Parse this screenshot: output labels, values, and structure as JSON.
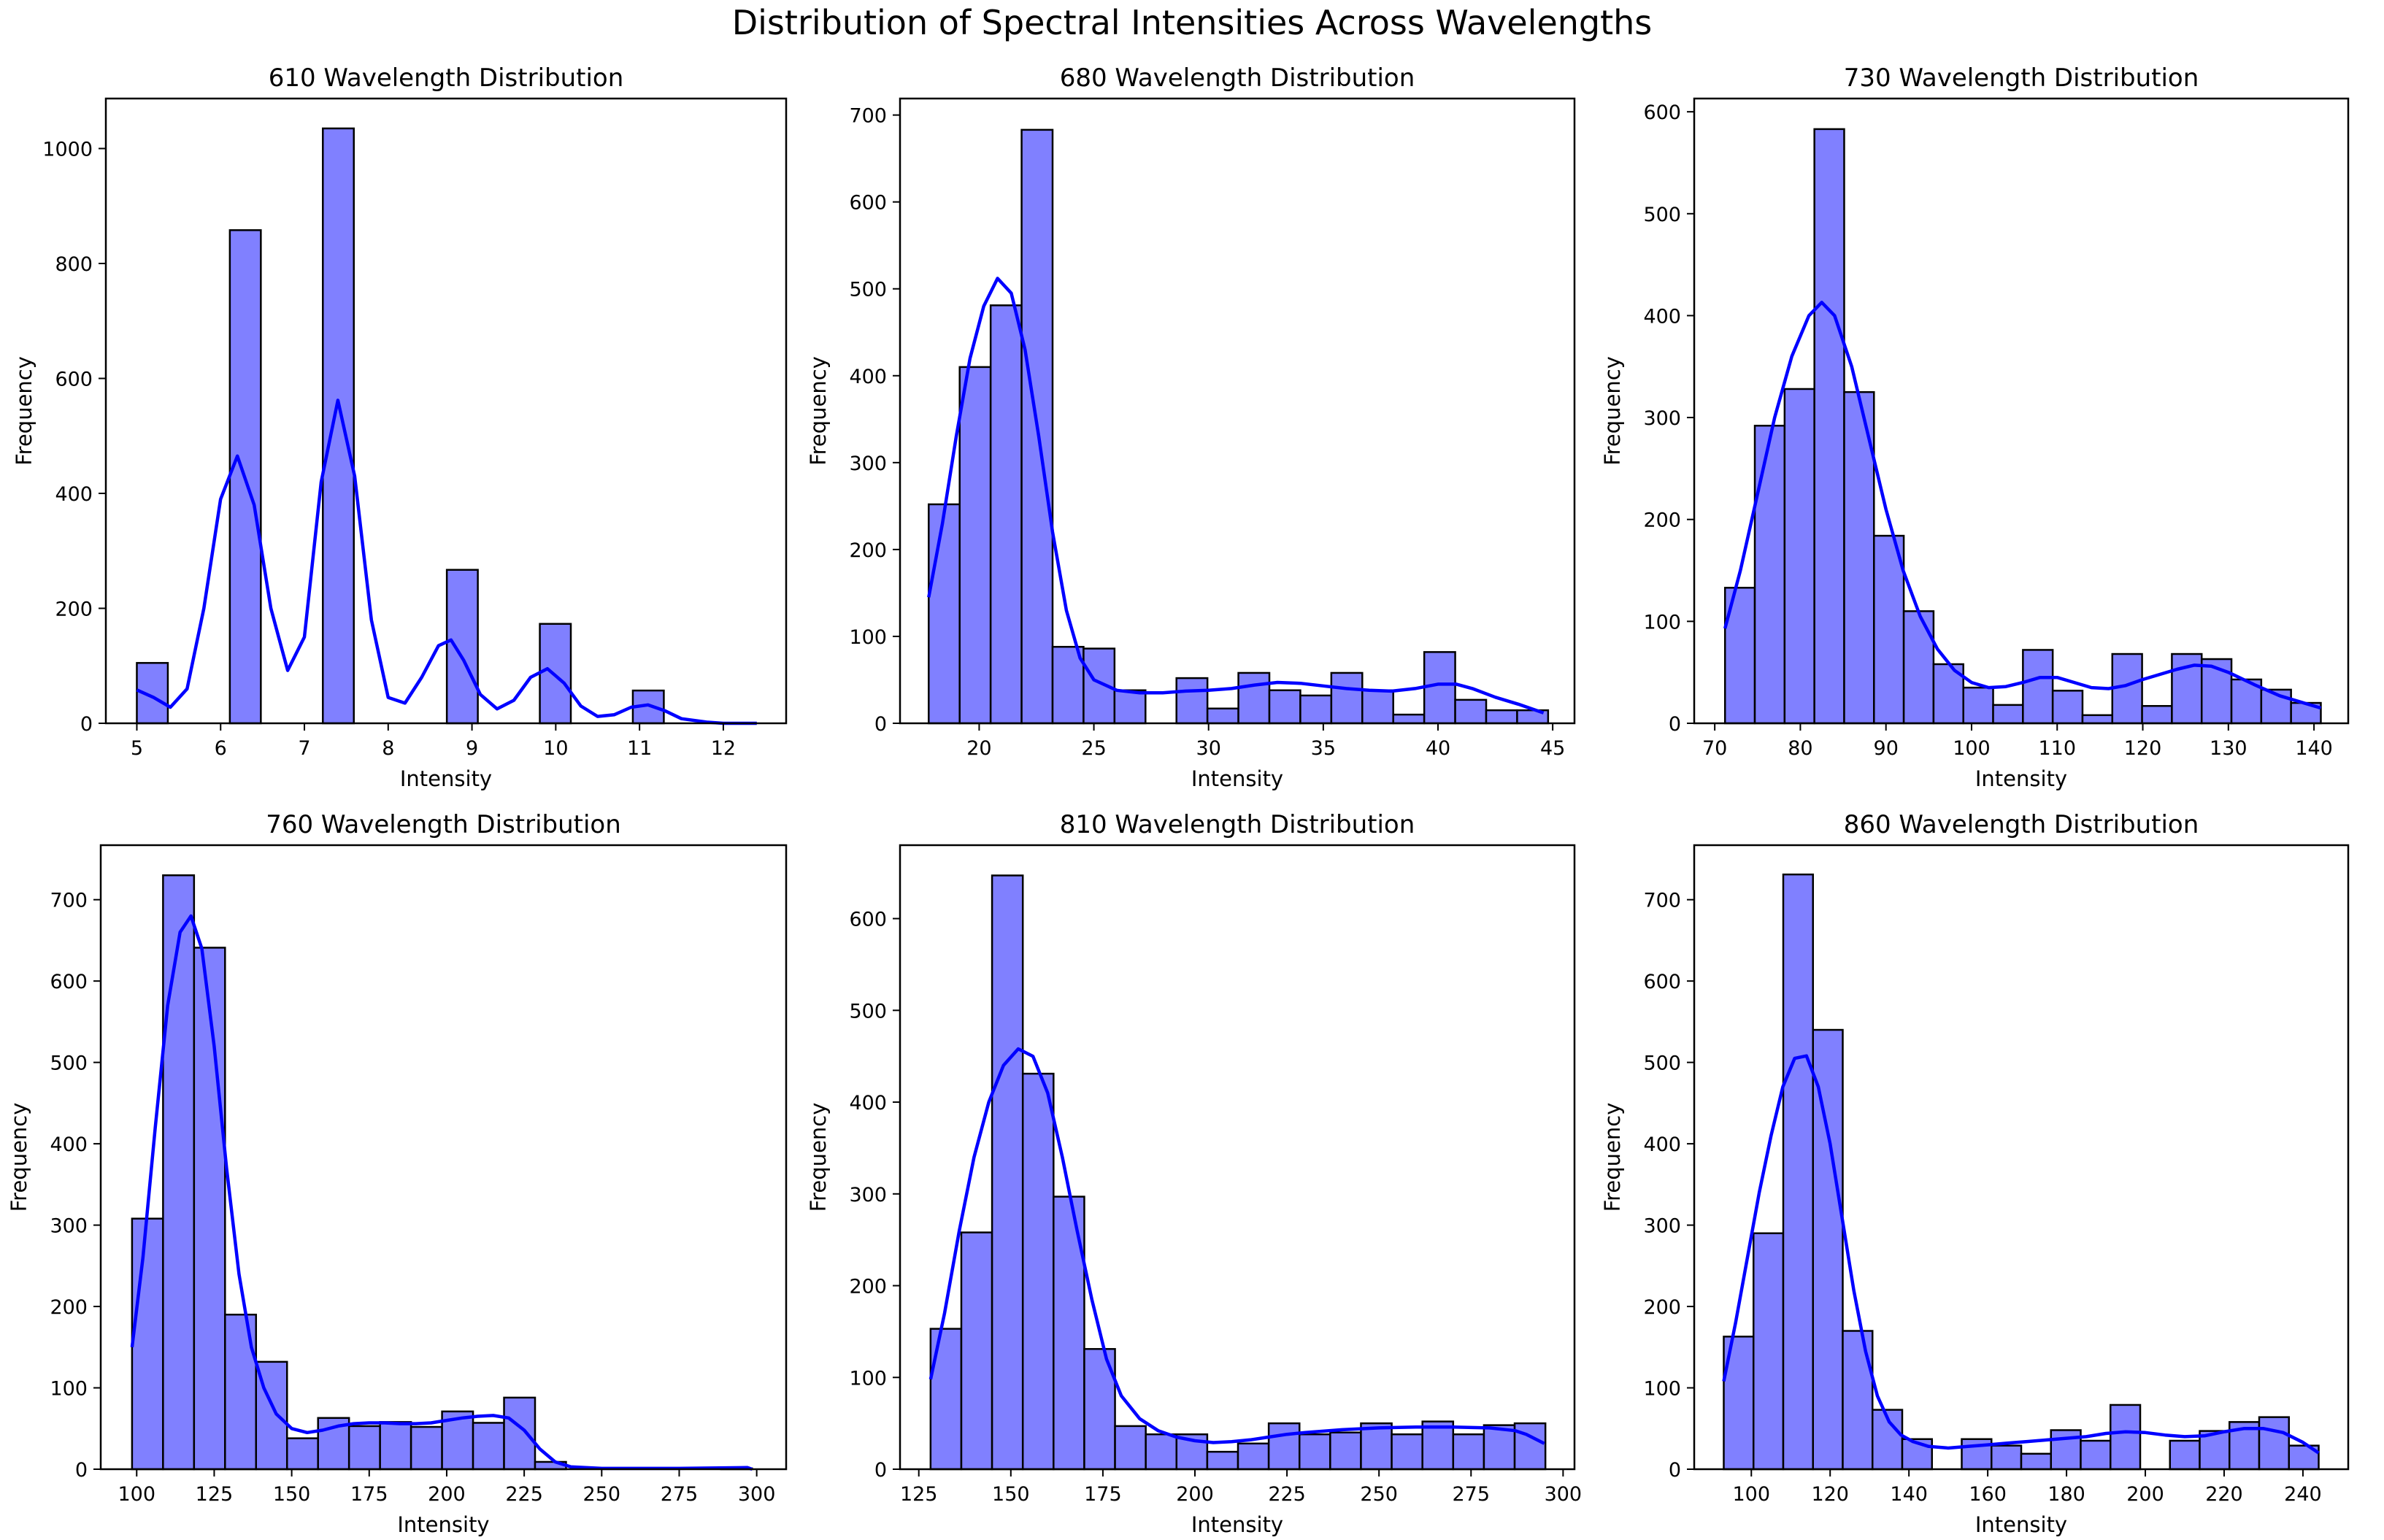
{
  "figure_title": "Distribution of Spectral Intensities Across Wavelengths",
  "colors": {
    "bar_fill": "#8080ff",
    "bar_edge": "#000000",
    "kde": "#0000ff"
  },
  "chart_data": [
    {
      "type": "histogram",
      "title": "610 Wavelength Distribution",
      "xlabel": "Intensity",
      "ylabel": "Frequency",
      "xlim": [
        4.63,
        12.75
      ],
      "ylim": [
        0,
        1087
      ],
      "xticks": [
        5,
        6,
        7,
        8,
        9,
        10,
        11,
        12
      ],
      "yticks": [
        0,
        200,
        400,
        600,
        800,
        1000
      ],
      "bin_start": 5.0,
      "bin_width": 0.37,
      "values": [
        105,
        0,
        0,
        858,
        0,
        0,
        1035,
        0,
        0,
        0,
        267,
        0,
        0,
        173,
        0,
        0,
        57,
        0,
        0,
        0
      ],
      "kde": [
        [
          5.0,
          58
        ],
        [
          5.2,
          45
        ],
        [
          5.4,
          28
        ],
        [
          5.6,
          60
        ],
        [
          5.8,
          200
        ],
        [
          6.0,
          390
        ],
        [
          6.2,
          465
        ],
        [
          6.4,
          380
        ],
        [
          6.6,
          200
        ],
        [
          6.8,
          92
        ],
        [
          7.0,
          150
        ],
        [
          7.2,
          420
        ],
        [
          7.4,
          562
        ],
        [
          7.6,
          430
        ],
        [
          7.8,
          180
        ],
        [
          8.0,
          45
        ],
        [
          8.2,
          35
        ],
        [
          8.4,
          80
        ],
        [
          8.6,
          135
        ],
        [
          8.75,
          145
        ],
        [
          8.9,
          110
        ],
        [
          9.1,
          50
        ],
        [
          9.3,
          25
        ],
        [
          9.5,
          40
        ],
        [
          9.7,
          80
        ],
        [
          9.9,
          95
        ],
        [
          10.1,
          70
        ],
        [
          10.3,
          30
        ],
        [
          10.5,
          12
        ],
        [
          10.7,
          15
        ],
        [
          10.9,
          28
        ],
        [
          11.1,
          32
        ],
        [
          11.3,
          22
        ],
        [
          11.5,
          8
        ],
        [
          11.8,
          2
        ],
        [
          12.0,
          0
        ],
        [
          12.4,
          0
        ]
      ]
    },
    {
      "type": "histogram",
      "title": "680 Wavelength Distribution",
      "xlabel": "Intensity",
      "ylabel": "Frequency",
      "xlim": [
        16.55,
        45.95
      ],
      "ylim": [
        0,
        719
      ],
      "xticks": [
        20,
        25,
        30,
        35,
        40,
        45
      ],
      "yticks": [
        0,
        100,
        200,
        300,
        400,
        500,
        600,
        700
      ],
      "bin_start": 17.8,
      "bin_width": 1.35,
      "values": [
        252,
        410,
        481,
        683,
        88,
        86,
        38,
        0,
        52,
        17,
        58,
        38,
        32,
        58,
        38,
        10,
        82,
        27,
        15,
        15
      ],
      "kde": [
        [
          17.8,
          145
        ],
        [
          18.4,
          230
        ],
        [
          19.0,
          330
        ],
        [
          19.6,
          420
        ],
        [
          20.2,
          480
        ],
        [
          20.8,
          512
        ],
        [
          21.4,
          495
        ],
        [
          22.0,
          430
        ],
        [
          22.6,
          330
        ],
        [
          23.2,
          220
        ],
        [
          23.8,
          130
        ],
        [
          24.4,
          75
        ],
        [
          25.0,
          50
        ],
        [
          26.0,
          38
        ],
        [
          27.0,
          35
        ],
        [
          28.0,
          35
        ],
        [
          29.0,
          37
        ],
        [
          30.0,
          38
        ],
        [
          31.0,
          40
        ],
        [
          32.0,
          44
        ],
        [
          33.0,
          47
        ],
        [
          34.0,
          46
        ],
        [
          35.0,
          43
        ],
        [
          36.0,
          40
        ],
        [
          37.0,
          38
        ],
        [
          38.0,
          37
        ],
        [
          39.0,
          40
        ],
        [
          40.0,
          45
        ],
        [
          40.8,
          45
        ],
        [
          41.5,
          40
        ],
        [
          42.5,
          30
        ],
        [
          43.5,
          22
        ],
        [
          44.6,
          12
        ]
      ]
    },
    {
      "type": "histogram",
      "title": "730 Wavelength Distribution",
      "xlabel": "Intensity",
      "ylabel": "Frequency",
      "xlim": [
        67.6,
        144.0
      ],
      "ylim": [
        0,
        613
      ],
      "xticks": [
        70,
        80,
        90,
        100,
        110,
        120,
        130,
        140
      ],
      "yticks": [
        0,
        100,
        200,
        300,
        400,
        500,
        600
      ],
      "bin_start": 71.2,
      "bin_width": 3.48,
      "values": [
        133,
        292,
        328,
        583,
        325,
        184,
        110,
        58,
        35,
        18,
        72,
        32,
        8,
        68,
        17,
        68,
        63,
        43,
        33,
        20
      ],
      "kde": [
        [
          71.2,
          93
        ],
        [
          73.0,
          150
        ],
        [
          75.0,
          225
        ],
        [
          77.0,
          300
        ],
        [
          79.0,
          360
        ],
        [
          81.0,
          400
        ],
        [
          82.5,
          413
        ],
        [
          84.0,
          400
        ],
        [
          86.0,
          350
        ],
        [
          88.0,
          280
        ],
        [
          90.0,
          210
        ],
        [
          92.0,
          150
        ],
        [
          94.0,
          105
        ],
        [
          96.0,
          73
        ],
        [
          98.0,
          52
        ],
        [
          100.0,
          40
        ],
        [
          102.0,
          35
        ],
        [
          104.0,
          36
        ],
        [
          106.0,
          40
        ],
        [
          108.0,
          45
        ],
        [
          110.0,
          45
        ],
        [
          112.0,
          40
        ],
        [
          114.0,
          35
        ],
        [
          116.0,
          34
        ],
        [
          118.0,
          37
        ],
        [
          120.0,
          43
        ],
        [
          122.0,
          48
        ],
        [
          124.0,
          53
        ],
        [
          126.0,
          57
        ],
        [
          128.0,
          56
        ],
        [
          130.0,
          50
        ],
        [
          133.0,
          38
        ],
        [
          136.0,
          27
        ],
        [
          138.0,
          22
        ],
        [
          140.8,
          15
        ]
      ]
    },
    {
      "type": "histogram",
      "title": "760 Wavelength Distribution",
      "xlabel": "Intensity",
      "ylabel": "Frequency",
      "xlim": [
        88.4,
        309.5
      ],
      "ylim": [
        0,
        767
      ],
      "xticks": [
        100,
        125,
        150,
        175,
        200,
        225,
        250,
        275,
        300
      ],
      "yticks": [
        0,
        100,
        200,
        300,
        400,
        500,
        600,
        700
      ],
      "bin_start": 98.5,
      "bin_width": 10.0,
      "values": [
        308,
        730,
        641,
        190,
        132,
        38,
        63,
        53,
        58,
        52,
        71,
        57,
        88,
        9,
        0,
        0,
        0,
        0,
        0,
        1
      ],
      "kde": [
        [
          98.5,
          150
        ],
        [
          102.0,
          260
        ],
        [
          106.0,
          420
        ],
        [
          110.0,
          570
        ],
        [
          114.0,
          660
        ],
        [
          117.5,
          680
        ],
        [
          121.0,
          640
        ],
        [
          125.0,
          520
        ],
        [
          129.0,
          370
        ],
        [
          133.0,
          240
        ],
        [
          137.0,
          150
        ],
        [
          141.0,
          100
        ],
        [
          145.0,
          68
        ],
        [
          150.0,
          50
        ],
        [
          155.0,
          45
        ],
        [
          160.0,
          48
        ],
        [
          165.0,
          53
        ],
        [
          170.0,
          56
        ],
        [
          175.0,
          57
        ],
        [
          180.0,
          57
        ],
        [
          185.0,
          56
        ],
        [
          190.0,
          56
        ],
        [
          195.0,
          57
        ],
        [
          200.0,
          60
        ],
        [
          205.0,
          63
        ],
        [
          210.0,
          65
        ],
        [
          215.0,
          66
        ],
        [
          220.0,
          63
        ],
        [
          225.0,
          48
        ],
        [
          230.0,
          25
        ],
        [
          235.0,
          9
        ],
        [
          240.0,
          3
        ],
        [
          250.0,
          1
        ],
        [
          275.0,
          1
        ],
        [
          297.0,
          2
        ],
        [
          298.5,
          0
        ]
      ]
    },
    {
      "type": "histogram",
      "title": "810 Wavelength Distribution",
      "xlabel": "Intensity",
      "ylabel": "Frequency",
      "xlim": [
        119.9,
        303.1
      ],
      "ylim": [
        0,
        680
      ],
      "xticks": [
        125,
        150,
        175,
        200,
        225,
        250,
        275,
        300
      ],
      "yticks": [
        0,
        100,
        200,
        300,
        400,
        500,
        600
      ],
      "bin_start": 128.2,
      "bin_width": 8.35,
      "values": [
        153,
        258,
        647,
        431,
        297,
        131,
        47,
        38,
        38,
        19,
        28,
        50,
        38,
        40,
        50,
        38,
        52,
        38,
        48,
        50
      ],
      "kde": [
        [
          128.2,
          98
        ],
        [
          132.0,
          170
        ],
        [
          136.0,
          260
        ],
        [
          140.0,
          340
        ],
        [
          144.0,
          400
        ],
        [
          148.0,
          440
        ],
        [
          152.0,
          458
        ],
        [
          156.0,
          450
        ],
        [
          160.0,
          410
        ],
        [
          164.0,
          340
        ],
        [
          168.0,
          260
        ],
        [
          172.0,
          185
        ],
        [
          176.0,
          120
        ],
        [
          180.0,
          80
        ],
        [
          185.0,
          55
        ],
        [
          190.0,
          42
        ],
        [
          195.0,
          35
        ],
        [
          200.0,
          31
        ],
        [
          205.0,
          29
        ],
        [
          210.0,
          30
        ],
        [
          215.0,
          32
        ],
        [
          220.0,
          35
        ],
        [
          225.0,
          38
        ],
        [
          230.0,
          40
        ],
        [
          240.0,
          43
        ],
        [
          250.0,
          45
        ],
        [
          260.0,
          46
        ],
        [
          270.0,
          46
        ],
        [
          280.0,
          45
        ],
        [
          287.0,
          42
        ],
        [
          290.0,
          38
        ],
        [
          294.9,
          28
        ]
      ]
    },
    {
      "type": "histogram",
      "title": "860 Wavelength Distribution",
      "xlabel": "Intensity",
      "ylabel": "Frequency",
      "xlim": [
        85.5,
        251.5
      ],
      "ylim": [
        0,
        767
      ],
      "xticks": [
        100,
        120,
        140,
        160,
        180,
        200,
        220,
        240
      ],
      "yticks": [
        0,
        100,
        200,
        300,
        400,
        500,
        600,
        700
      ],
      "bin_start": 93.0,
      "bin_width": 7.55,
      "values": [
        163,
        290,
        731,
        540,
        170,
        73,
        37,
        0,
        37,
        29,
        19,
        48,
        35,
        79,
        0,
        35,
        47,
        58,
        64,
        29
      ],
      "kde": [
        [
          93.0,
          108
        ],
        [
          96.0,
          180
        ],
        [
          99.0,
          260
        ],
        [
          102.0,
          340
        ],
        [
          105.0,
          410
        ],
        [
          108.0,
          470
        ],
        [
          111.0,
          505
        ],
        [
          114.0,
          508
        ],
        [
          117.0,
          470
        ],
        [
          120.0,
          400
        ],
        [
          123.0,
          310
        ],
        [
          126.0,
          220
        ],
        [
          129.0,
          145
        ],
        [
          132.0,
          90
        ],
        [
          135.0,
          58
        ],
        [
          138.0,
          42
        ],
        [
          141.0,
          34
        ],
        [
          145.0,
          28
        ],
        [
          150.0,
          26
        ],
        [
          155.0,
          28
        ],
        [
          160.0,
          30
        ],
        [
          165.0,
          32
        ],
        [
          170.0,
          34
        ],
        [
          175.0,
          36
        ],
        [
          180.0,
          38
        ],
        [
          185.0,
          40
        ],
        [
          190.0,
          44
        ],
        [
          195.0,
          46
        ],
        [
          200.0,
          45
        ],
        [
          205.0,
          42
        ],
        [
          210.0,
          40
        ],
        [
          215.0,
          41
        ],
        [
          220.0,
          46
        ],
        [
          225.0,
          50
        ],
        [
          230.0,
          50
        ],
        [
          235.0,
          45
        ],
        [
          240.0,
          33
        ],
        [
          244.0,
          20
        ]
      ]
    }
  ]
}
